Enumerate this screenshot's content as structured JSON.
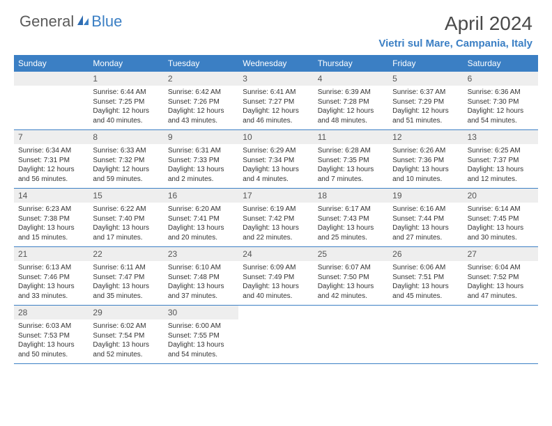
{
  "brand": {
    "part1": "General",
    "part2": "Blue"
  },
  "accent_color": "#3b7fc4",
  "gray_bg": "#eeeeee",
  "title": "April 2024",
  "location": "Vietri sul Mare, Campania, Italy",
  "weekdays": [
    "Sunday",
    "Monday",
    "Tuesday",
    "Wednesday",
    "Thursday",
    "Friday",
    "Saturday"
  ],
  "weeks": [
    [
      null,
      {
        "n": "1",
        "sr": "Sunrise: 6:44 AM",
        "ss": "Sunset: 7:25 PM",
        "d1": "Daylight: 12 hours",
        "d2": "and 40 minutes."
      },
      {
        "n": "2",
        "sr": "Sunrise: 6:42 AM",
        "ss": "Sunset: 7:26 PM",
        "d1": "Daylight: 12 hours",
        "d2": "and 43 minutes."
      },
      {
        "n": "3",
        "sr": "Sunrise: 6:41 AM",
        "ss": "Sunset: 7:27 PM",
        "d1": "Daylight: 12 hours",
        "d2": "and 46 minutes."
      },
      {
        "n": "4",
        "sr": "Sunrise: 6:39 AM",
        "ss": "Sunset: 7:28 PM",
        "d1": "Daylight: 12 hours",
        "d2": "and 48 minutes."
      },
      {
        "n": "5",
        "sr": "Sunrise: 6:37 AM",
        "ss": "Sunset: 7:29 PM",
        "d1": "Daylight: 12 hours",
        "d2": "and 51 minutes."
      },
      {
        "n": "6",
        "sr": "Sunrise: 6:36 AM",
        "ss": "Sunset: 7:30 PM",
        "d1": "Daylight: 12 hours",
        "d2": "and 54 minutes."
      }
    ],
    [
      {
        "n": "7",
        "sr": "Sunrise: 6:34 AM",
        "ss": "Sunset: 7:31 PM",
        "d1": "Daylight: 12 hours",
        "d2": "and 56 minutes."
      },
      {
        "n": "8",
        "sr": "Sunrise: 6:33 AM",
        "ss": "Sunset: 7:32 PM",
        "d1": "Daylight: 12 hours",
        "d2": "and 59 minutes."
      },
      {
        "n": "9",
        "sr": "Sunrise: 6:31 AM",
        "ss": "Sunset: 7:33 PM",
        "d1": "Daylight: 13 hours",
        "d2": "and 2 minutes."
      },
      {
        "n": "10",
        "sr": "Sunrise: 6:29 AM",
        "ss": "Sunset: 7:34 PM",
        "d1": "Daylight: 13 hours",
        "d2": "and 4 minutes."
      },
      {
        "n": "11",
        "sr": "Sunrise: 6:28 AM",
        "ss": "Sunset: 7:35 PM",
        "d1": "Daylight: 13 hours",
        "d2": "and 7 minutes."
      },
      {
        "n": "12",
        "sr": "Sunrise: 6:26 AM",
        "ss": "Sunset: 7:36 PM",
        "d1": "Daylight: 13 hours",
        "d2": "and 10 minutes."
      },
      {
        "n": "13",
        "sr": "Sunrise: 6:25 AM",
        "ss": "Sunset: 7:37 PM",
        "d1": "Daylight: 13 hours",
        "d2": "and 12 minutes."
      }
    ],
    [
      {
        "n": "14",
        "sr": "Sunrise: 6:23 AM",
        "ss": "Sunset: 7:38 PM",
        "d1": "Daylight: 13 hours",
        "d2": "and 15 minutes."
      },
      {
        "n": "15",
        "sr": "Sunrise: 6:22 AM",
        "ss": "Sunset: 7:40 PM",
        "d1": "Daylight: 13 hours",
        "d2": "and 17 minutes."
      },
      {
        "n": "16",
        "sr": "Sunrise: 6:20 AM",
        "ss": "Sunset: 7:41 PM",
        "d1": "Daylight: 13 hours",
        "d2": "and 20 minutes."
      },
      {
        "n": "17",
        "sr": "Sunrise: 6:19 AM",
        "ss": "Sunset: 7:42 PM",
        "d1": "Daylight: 13 hours",
        "d2": "and 22 minutes."
      },
      {
        "n": "18",
        "sr": "Sunrise: 6:17 AM",
        "ss": "Sunset: 7:43 PM",
        "d1": "Daylight: 13 hours",
        "d2": "and 25 minutes."
      },
      {
        "n": "19",
        "sr": "Sunrise: 6:16 AM",
        "ss": "Sunset: 7:44 PM",
        "d1": "Daylight: 13 hours",
        "d2": "and 27 minutes."
      },
      {
        "n": "20",
        "sr": "Sunrise: 6:14 AM",
        "ss": "Sunset: 7:45 PM",
        "d1": "Daylight: 13 hours",
        "d2": "and 30 minutes."
      }
    ],
    [
      {
        "n": "21",
        "sr": "Sunrise: 6:13 AM",
        "ss": "Sunset: 7:46 PM",
        "d1": "Daylight: 13 hours",
        "d2": "and 33 minutes."
      },
      {
        "n": "22",
        "sr": "Sunrise: 6:11 AM",
        "ss": "Sunset: 7:47 PM",
        "d1": "Daylight: 13 hours",
        "d2": "and 35 minutes."
      },
      {
        "n": "23",
        "sr": "Sunrise: 6:10 AM",
        "ss": "Sunset: 7:48 PM",
        "d1": "Daylight: 13 hours",
        "d2": "and 37 minutes."
      },
      {
        "n": "24",
        "sr": "Sunrise: 6:09 AM",
        "ss": "Sunset: 7:49 PM",
        "d1": "Daylight: 13 hours",
        "d2": "and 40 minutes."
      },
      {
        "n": "25",
        "sr": "Sunrise: 6:07 AM",
        "ss": "Sunset: 7:50 PM",
        "d1": "Daylight: 13 hours",
        "d2": "and 42 minutes."
      },
      {
        "n": "26",
        "sr": "Sunrise: 6:06 AM",
        "ss": "Sunset: 7:51 PM",
        "d1": "Daylight: 13 hours",
        "d2": "and 45 minutes."
      },
      {
        "n": "27",
        "sr": "Sunrise: 6:04 AM",
        "ss": "Sunset: 7:52 PM",
        "d1": "Daylight: 13 hours",
        "d2": "and 47 minutes."
      }
    ],
    [
      {
        "n": "28",
        "sr": "Sunrise: 6:03 AM",
        "ss": "Sunset: 7:53 PM",
        "d1": "Daylight: 13 hours",
        "d2": "and 50 minutes."
      },
      {
        "n": "29",
        "sr": "Sunrise: 6:02 AM",
        "ss": "Sunset: 7:54 PM",
        "d1": "Daylight: 13 hours",
        "d2": "and 52 minutes."
      },
      {
        "n": "30",
        "sr": "Sunrise: 6:00 AM",
        "ss": "Sunset: 7:55 PM",
        "d1": "Daylight: 13 hours",
        "d2": "and 54 minutes."
      },
      null,
      null,
      null,
      null
    ]
  ]
}
